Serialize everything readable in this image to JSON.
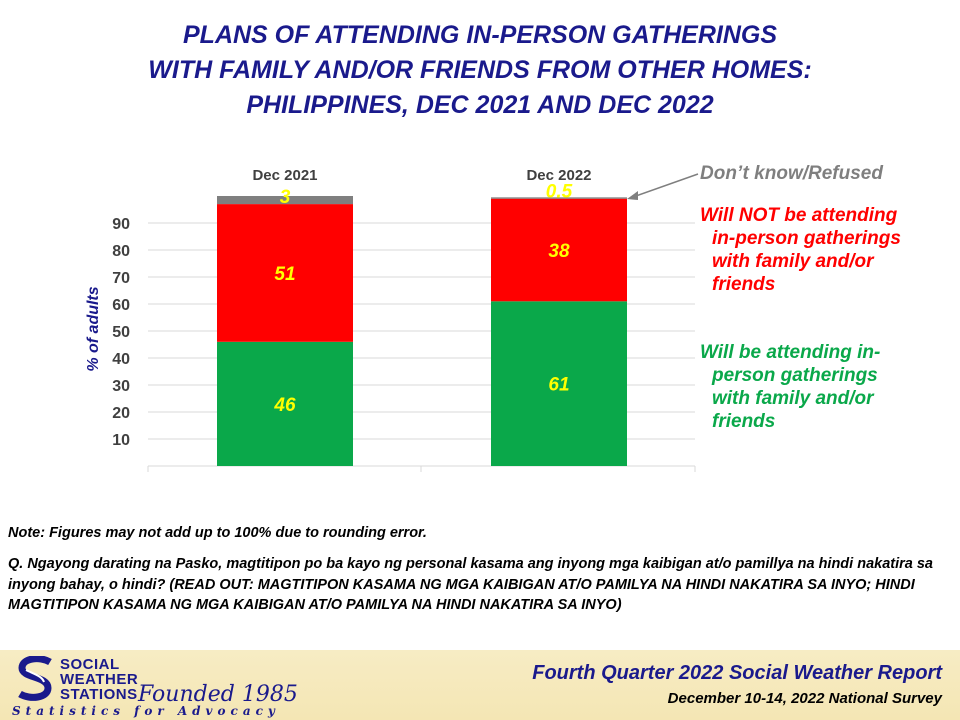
{
  "title_lines": [
    "PLANS OF ATTENDING IN-PERSON GATHERINGS",
    "WITH FAMILY AND/OR FRIENDS FROM OTHER HOMES:",
    "PHILIPPINES, DEC 2021 AND DEC 2022"
  ],
  "colors": {
    "title": "#1a1a8c",
    "attending": "#0aa84a",
    "not_attending": "#ff0000",
    "dont_know": "#7f7f7f",
    "label": "#ffff00"
  },
  "chart_data": {
    "type": "bar",
    "stacked": true,
    "categories": [
      "Dec 2021",
      "Dec 2022"
    ],
    "series": [
      {
        "name": "Will be attending in-person gatherings with family and/or friends",
        "values": [
          46,
          61
        ],
        "labels": [
          "46",
          "61"
        ]
      },
      {
        "name": "Will NOT be attending in-person gatherings with family and/or friends",
        "values": [
          51,
          38
        ],
        "labels": [
          "51",
          "38"
        ]
      },
      {
        "name": "Don’t know/Refused",
        "values": [
          3,
          0.5
        ],
        "labels": [
          "3",
          "0.5"
        ]
      }
    ],
    "ylabel": "% of adults",
    "yticks": [
      10,
      20,
      30,
      40,
      50,
      60,
      70,
      80,
      90
    ],
    "ylim": [
      0,
      100
    ],
    "grid": true
  },
  "legend": {
    "dont_know": "Don’t know/Refused",
    "not_attending": [
      "Will NOT be attending",
      "in-person gatherings",
      "with family and/or",
      "friends"
    ],
    "attending": [
      "Will be attending in-",
      "person gatherings",
      "with family and/or",
      "friends"
    ]
  },
  "note": "Note: Figures may not add up to 100% due to rounding error.",
  "question": "Q. Ngayong darating na Pasko, magtitipon po ba kayo ng personal kasama ang inyong mga kaibigan at/o pamillya na hindi nakatira sa inyong bahay, o hindi? (READ OUT: MAGTITIPON KASAMA NG MGA KAIBIGAN AT/O PAMILYA NA HINDI NAKATIRA SA INYO; HINDI MAGTITIPON KASAMA NG MGA KAIBIGAN AT/O PAMILYA NA HINDI NAKATIRA SA INYO)",
  "footer": {
    "logo_lines": [
      "SOCIAL",
      "WEATHER",
      "STATIONS"
    ],
    "founded": "Founded 1985",
    "tagline": "Statistics for Advocacy",
    "report_title": "Fourth Quarter 2022 Social Weather Report",
    "survey": "December 10-14, 2022 National Survey"
  }
}
